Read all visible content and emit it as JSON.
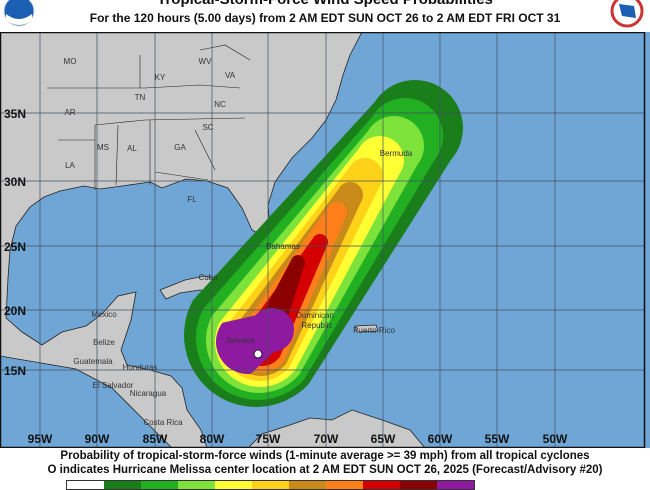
{
  "header": {
    "title": "Tropical-Storm-Force Wind Speed Probabilities",
    "subtitle": "For the 120 hours (5.00 days) from 2 AM EDT SUN OCT 26 to 2 AM EDT FRI OCT 31"
  },
  "logos": {
    "left": "NOAA",
    "right": "National Weather Service"
  },
  "map": {
    "latitude_labels": [
      "35N",
      "30N",
      "25N",
      "20N",
      "15N"
    ],
    "longitude_labels": [
      "95W",
      "90W",
      "85W",
      "80W",
      "75W",
      "70W",
      "65W",
      "60W",
      "55W",
      "50W"
    ],
    "place_labels": [
      "MO",
      "KY",
      "WV",
      "VA",
      "TN",
      "NC",
      "AR",
      "SC",
      "MS",
      "AL",
      "GA",
      "LA",
      "FL",
      "Mexico",
      "Belize",
      "Guatemala",
      "Honduras",
      "El Salvador",
      "Nicaragua",
      "Costa Rica",
      "Cuba",
      "Bahamas",
      "Jamaica",
      "Dominican",
      "Republic",
      "Puerto Rico",
      "Bermuda"
    ],
    "storm_center": {
      "name": "Hurricane Melissa",
      "lat": 15.8,
      "lon": 76.2
    },
    "colors": {
      "land": "#c9c9c9",
      "ocean": "#6fa6d6",
      "grid": "#3f4f60"
    }
  },
  "caption": {
    "line1": "Probability of tropical-storm-force winds (1-minute average >= 39 mph) from all tropical cyclones",
    "line2": "O indicates Hurricane Melissa center location at 2 AM EDT SUN OCT 26, 2025 (Forecast/Advisory #20)"
  },
  "legend_colors": [
    "#ffffff",
    "#1a7f1a",
    "#22b022",
    "#7de33a",
    "#ffff33",
    "#ffd21a",
    "#c98a1a",
    "#ff7f1a",
    "#d40000",
    "#8b0000",
    "#8e1aa0"
  ]
}
